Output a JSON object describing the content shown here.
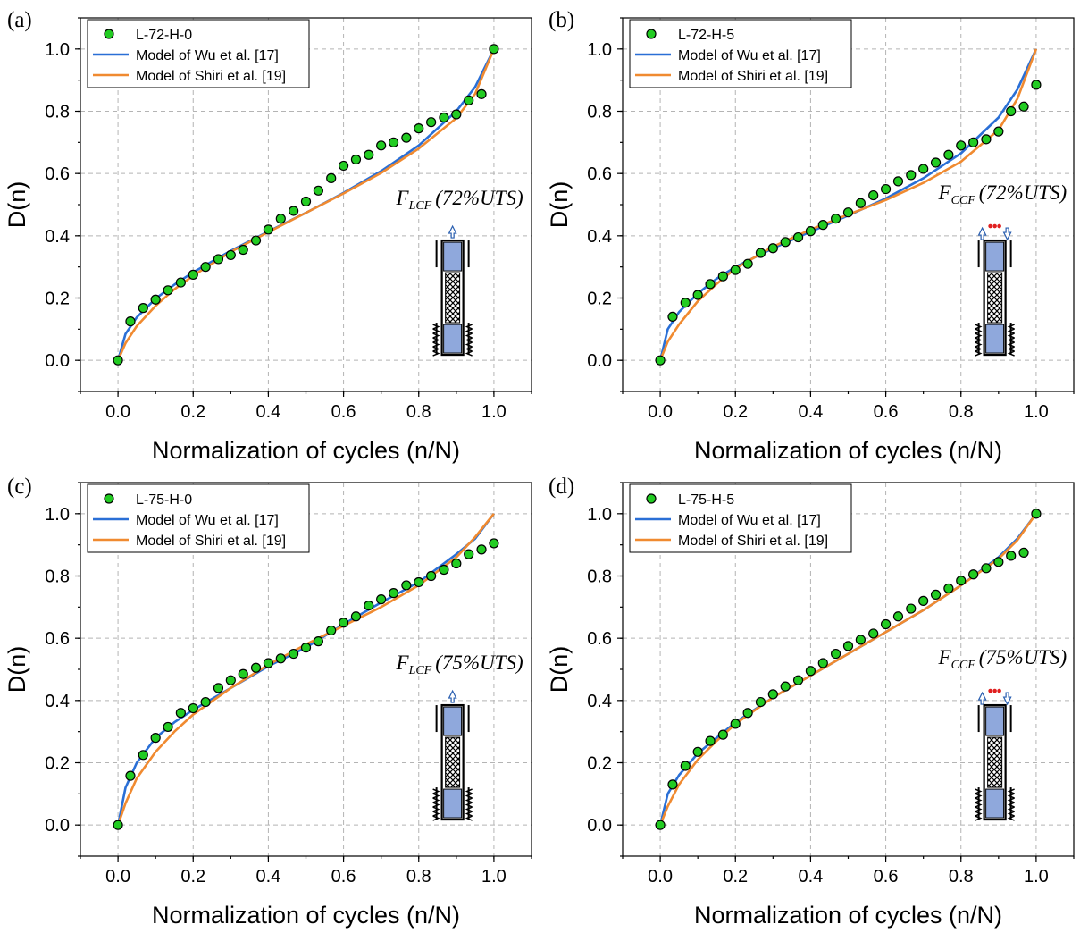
{
  "chart_data": [
    {
      "type": "scatter",
      "panel_label": "(a)",
      "xlabel": "Normalization of cycles (n/N)",
      "ylabel": "D(n)",
      "xlim": [
        -0.1,
        1.1
      ],
      "ylim": [
        -0.1,
        1.1
      ],
      "xticks": [
        "0.0",
        "0.2",
        "0.4",
        "0.6",
        "0.8",
        "1.0"
      ],
      "yticks": [
        "0.0",
        "0.2",
        "0.4",
        "0.6",
        "0.8",
        "1.0"
      ],
      "grid": true,
      "legend_position": "top-left",
      "annotation": {
        "F": "F",
        "sub": "LCF",
        "text": "(72%UTS)"
      },
      "specimen": "LCF",
      "series": [
        {
          "name": "L-72-H-0",
          "kind": "scatter",
          "color": "#22cc22",
          "x": [
            0,
            0.033,
            0.067,
            0.1,
            0.133,
            0.167,
            0.2,
            0.233,
            0.267,
            0.3,
            0.333,
            0.367,
            0.4,
            0.433,
            0.467,
            0.5,
            0.533,
            0.567,
            0.6,
            0.633,
            0.667,
            0.7,
            0.733,
            0.767,
            0.8,
            0.833,
            0.867,
            0.9,
            0.933,
            0.967,
            1.0
          ],
          "y": [
            0,
            0.125,
            0.168,
            0.195,
            0.225,
            0.25,
            0.275,
            0.3,
            0.325,
            0.338,
            0.355,
            0.385,
            0.42,
            0.455,
            0.48,
            0.51,
            0.545,
            0.585,
            0.625,
            0.645,
            0.66,
            0.69,
            0.7,
            0.715,
            0.745,
            0.765,
            0.78,
            0.79,
            0.835,
            0.855,
            1.0
          ]
        },
        {
          "name": "Model of Wu et al. [17]",
          "kind": "line",
          "color": "#2a6fd6",
          "x": [
            0,
            0.02,
            0.05,
            0.1,
            0.15,
            0.2,
            0.3,
            0.4,
            0.5,
            0.6,
            0.7,
            0.8,
            0.9,
            0.95,
            1.0
          ],
          "y": [
            0,
            0.085,
            0.138,
            0.198,
            0.243,
            0.283,
            0.352,
            0.414,
            0.474,
            0.538,
            0.608,
            0.69,
            0.8,
            0.878,
            1.0
          ]
        },
        {
          "name": "Model of Shiri et al. [19]",
          "kind": "line",
          "color": "#f08a30",
          "x": [
            0,
            0.02,
            0.05,
            0.1,
            0.15,
            0.2,
            0.3,
            0.4,
            0.5,
            0.6,
            0.7,
            0.8,
            0.9,
            0.95,
            1.0
          ],
          "y": [
            0,
            0.055,
            0.11,
            0.175,
            0.228,
            0.272,
            0.348,
            0.412,
            0.474,
            0.536,
            0.602,
            0.68,
            0.778,
            0.856,
            1.0
          ]
        }
      ]
    },
    {
      "type": "scatter",
      "panel_label": "(b)",
      "xlabel": "Normalization of cycles (n/N)",
      "ylabel": "D(n)",
      "xlim": [
        -0.1,
        1.1
      ],
      "ylim": [
        -0.1,
        1.1
      ],
      "xticks": [
        "0.0",
        "0.2",
        "0.4",
        "0.6",
        "0.8",
        "1.0"
      ],
      "yticks": [
        "0.0",
        "0.2",
        "0.4",
        "0.6",
        "0.8",
        "1.0"
      ],
      "grid": true,
      "legend_position": "top-left",
      "annotation": {
        "F": "F",
        "sub": "CCF",
        "text": "(72%UTS)"
      },
      "specimen": "CCF",
      "series": [
        {
          "name": "L-72-H-5",
          "kind": "scatter",
          "color": "#22cc22",
          "x": [
            0,
            0.033,
            0.067,
            0.1,
            0.133,
            0.167,
            0.2,
            0.233,
            0.267,
            0.3,
            0.333,
            0.367,
            0.4,
            0.433,
            0.467,
            0.5,
            0.533,
            0.567,
            0.6,
            0.633,
            0.667,
            0.7,
            0.733,
            0.767,
            0.8,
            0.833,
            0.867,
            0.9,
            0.933,
            0.967,
            1.0
          ],
          "y": [
            0,
            0.14,
            0.185,
            0.21,
            0.245,
            0.27,
            0.29,
            0.31,
            0.345,
            0.36,
            0.38,
            0.395,
            0.415,
            0.435,
            0.455,
            0.475,
            0.505,
            0.53,
            0.55,
            0.575,
            0.595,
            0.615,
            0.635,
            0.66,
            0.69,
            0.7,
            0.71,
            0.735,
            0.8,
            0.815,
            0.885
          ]
        },
        {
          "name": "Model of Wu et al. [17]",
          "kind": "line",
          "color": "#2a6fd6",
          "x": [
            0,
            0.02,
            0.05,
            0.1,
            0.15,
            0.2,
            0.3,
            0.4,
            0.5,
            0.6,
            0.7,
            0.8,
            0.9,
            0.95,
            1.0
          ],
          "y": [
            0,
            0.1,
            0.155,
            0.215,
            0.262,
            0.3,
            0.36,
            0.413,
            0.465,
            0.52,
            0.585,
            0.665,
            0.78,
            0.87,
            1.0
          ]
        },
        {
          "name": "Model of Shiri et al. [19]",
          "kind": "line",
          "color": "#f08a30",
          "x": [
            0,
            0.02,
            0.05,
            0.1,
            0.15,
            0.2,
            0.3,
            0.4,
            0.5,
            0.6,
            0.7,
            0.8,
            0.9,
            0.95,
            1.0
          ],
          "y": [
            0,
            0.06,
            0.115,
            0.19,
            0.245,
            0.295,
            0.365,
            0.42,
            0.468,
            0.515,
            0.57,
            0.638,
            0.74,
            0.84,
            1.0
          ]
        }
      ]
    },
    {
      "type": "scatter",
      "panel_label": "(c)",
      "xlabel": "Normalization of cycles (n/N)",
      "ylabel": "D(n)",
      "xlim": [
        -0.1,
        1.1
      ],
      "ylim": [
        -0.1,
        1.1
      ],
      "xticks": [
        "0.0",
        "0.2",
        "0.4",
        "0.6",
        "0.8",
        "1.0"
      ],
      "yticks": [
        "0.0",
        "0.2",
        "0.4",
        "0.6",
        "0.8",
        "1.0"
      ],
      "grid": true,
      "legend_position": "top-left",
      "annotation": {
        "F": "F",
        "sub": "LCF",
        "text": "(75%UTS)"
      },
      "specimen": "LCF",
      "series": [
        {
          "name": "L-75-H-0",
          "kind": "scatter",
          "color": "#22cc22",
          "x": [
            0,
            0.033,
            0.067,
            0.1,
            0.133,
            0.167,
            0.2,
            0.233,
            0.267,
            0.3,
            0.333,
            0.367,
            0.4,
            0.433,
            0.467,
            0.5,
            0.533,
            0.567,
            0.6,
            0.633,
            0.667,
            0.7,
            0.733,
            0.767,
            0.8,
            0.833,
            0.867,
            0.9,
            0.933,
            0.967,
            1.0
          ],
          "y": [
            0,
            0.158,
            0.225,
            0.28,
            0.315,
            0.36,
            0.375,
            0.395,
            0.44,
            0.465,
            0.485,
            0.505,
            0.52,
            0.535,
            0.55,
            0.57,
            0.59,
            0.625,
            0.65,
            0.67,
            0.705,
            0.725,
            0.745,
            0.77,
            0.78,
            0.8,
            0.82,
            0.84,
            0.87,
            0.885,
            0.905
          ]
        },
        {
          "name": "Model of Wu et al. [17]",
          "kind": "line",
          "color": "#2a6fd6",
          "x": [
            0,
            0.02,
            0.05,
            0.1,
            0.15,
            0.2,
            0.3,
            0.4,
            0.5,
            0.6,
            0.7,
            0.8,
            0.9,
            0.95,
            1.0
          ],
          "y": [
            0,
            0.12,
            0.2,
            0.28,
            0.33,
            0.37,
            0.44,
            0.51,
            0.57,
            0.645,
            0.715,
            0.78,
            0.87,
            0.92,
            1.0
          ]
        },
        {
          "name": "Model of Shiri et al. [19]",
          "kind": "line",
          "color": "#f08a30",
          "x": [
            0,
            0.02,
            0.05,
            0.1,
            0.15,
            0.2,
            0.3,
            0.4,
            0.5,
            0.6,
            0.7,
            0.8,
            0.9,
            0.95,
            1.0
          ],
          "y": [
            0,
            0.07,
            0.15,
            0.235,
            0.3,
            0.355,
            0.44,
            0.515,
            0.58,
            0.64,
            0.7,
            0.77,
            0.86,
            0.925,
            1.0
          ]
        }
      ]
    },
    {
      "type": "scatter",
      "panel_label": "(d)",
      "xlabel": "Normalization of cycles (n/N)",
      "ylabel": "D(n)",
      "xlim": [
        -0.1,
        1.1
      ],
      "ylim": [
        -0.1,
        1.1
      ],
      "xticks": [
        "0.0",
        "0.2",
        "0.4",
        "0.6",
        "0.8",
        "1.0"
      ],
      "yticks": [
        "0.0",
        "0.2",
        "0.4",
        "0.6",
        "0.8",
        "1.0"
      ],
      "grid": true,
      "legend_position": "top-left",
      "annotation": {
        "F": "F",
        "sub": "CCF",
        "text": "(75%UTS)"
      },
      "specimen": "CCF",
      "series": [
        {
          "name": "L-75-H-5",
          "kind": "scatter",
          "color": "#22cc22",
          "x": [
            0,
            0.033,
            0.067,
            0.1,
            0.133,
            0.167,
            0.2,
            0.233,
            0.267,
            0.3,
            0.333,
            0.367,
            0.4,
            0.433,
            0.467,
            0.5,
            0.533,
            0.567,
            0.6,
            0.633,
            0.667,
            0.7,
            0.733,
            0.767,
            0.8,
            0.833,
            0.867,
            0.9,
            0.933,
            0.967,
            1.0
          ],
          "y": [
            0,
            0.13,
            0.19,
            0.235,
            0.27,
            0.29,
            0.325,
            0.36,
            0.395,
            0.42,
            0.445,
            0.465,
            0.495,
            0.52,
            0.55,
            0.575,
            0.595,
            0.615,
            0.645,
            0.67,
            0.695,
            0.72,
            0.74,
            0.76,
            0.785,
            0.805,
            0.825,
            0.845,
            0.865,
            0.875,
            1.0
          ]
        },
        {
          "name": "Model of Wu et al. [17]",
          "kind": "line",
          "color": "#2a6fd6",
          "x": [
            0,
            0.02,
            0.05,
            0.1,
            0.15,
            0.2,
            0.3,
            0.4,
            0.5,
            0.6,
            0.7,
            0.8,
            0.9,
            0.95,
            1.0
          ],
          "y": [
            0,
            0.1,
            0.16,
            0.23,
            0.28,
            0.33,
            0.41,
            0.48,
            0.55,
            0.62,
            0.69,
            0.77,
            0.86,
            0.92,
            1.0
          ]
        },
        {
          "name": "Model of Shiri et al. [19]",
          "kind": "line",
          "color": "#f08a30",
          "x": [
            0,
            0.02,
            0.05,
            0.1,
            0.15,
            0.2,
            0.3,
            0.4,
            0.5,
            0.6,
            0.7,
            0.8,
            0.9,
            0.95,
            1.0
          ],
          "y": [
            0,
            0.06,
            0.13,
            0.21,
            0.27,
            0.325,
            0.41,
            0.48,
            0.55,
            0.62,
            0.69,
            0.77,
            0.855,
            0.915,
            1.0
          ]
        }
      ]
    }
  ]
}
